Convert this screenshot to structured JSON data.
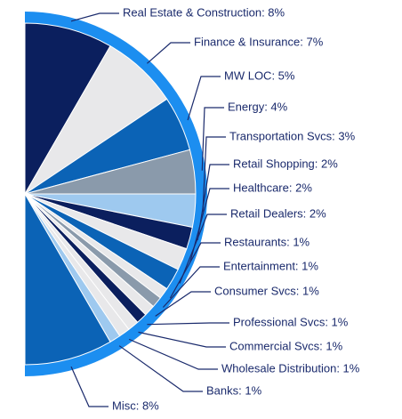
{
  "chart_data": {
    "type": "half-pie",
    "value_labels": [
      "Real Estate & Construction: 8%",
      "Finance & Insurance: 7%",
      "MW LOC: 5%",
      "Energy: 4%",
      "Transportation Svcs: 3%",
      "Retail Shopping: 2%",
      "Healthcare: 2%",
      "Retail Dealers: 2%",
      "Restaurants: 1%",
      "Entertainment: 1%",
      "Consumer Svcs: 1%",
      "Professional Svcs: 1%",
      "Commercial Svcs: 1%",
      "Wholesale Distribution: 1%",
      "Banks: 1%",
      "Misc: 8%"
    ],
    "values": [
      8,
      7,
      5,
      4,
      3,
      2,
      2,
      2,
      1,
      1,
      1,
      1,
      1,
      1,
      1,
      8
    ],
    "colors": [
      "#0b1f5e",
      "#e8e8ea",
      "#0b63b6",
      "#8a9aab",
      "#9ec9ef",
      "#0b1f5e",
      "#e8e8ea",
      "#0b63b6",
      "#e8e8ea",
      "#8a9aab",
      "#e8e8ea",
      "#0b1f5e",
      "#e8e8ea",
      "#e8e8ea",
      "#9ec9ef",
      "#0b63b6"
    ],
    "ring_color": "#1c8ef0"
  }
}
